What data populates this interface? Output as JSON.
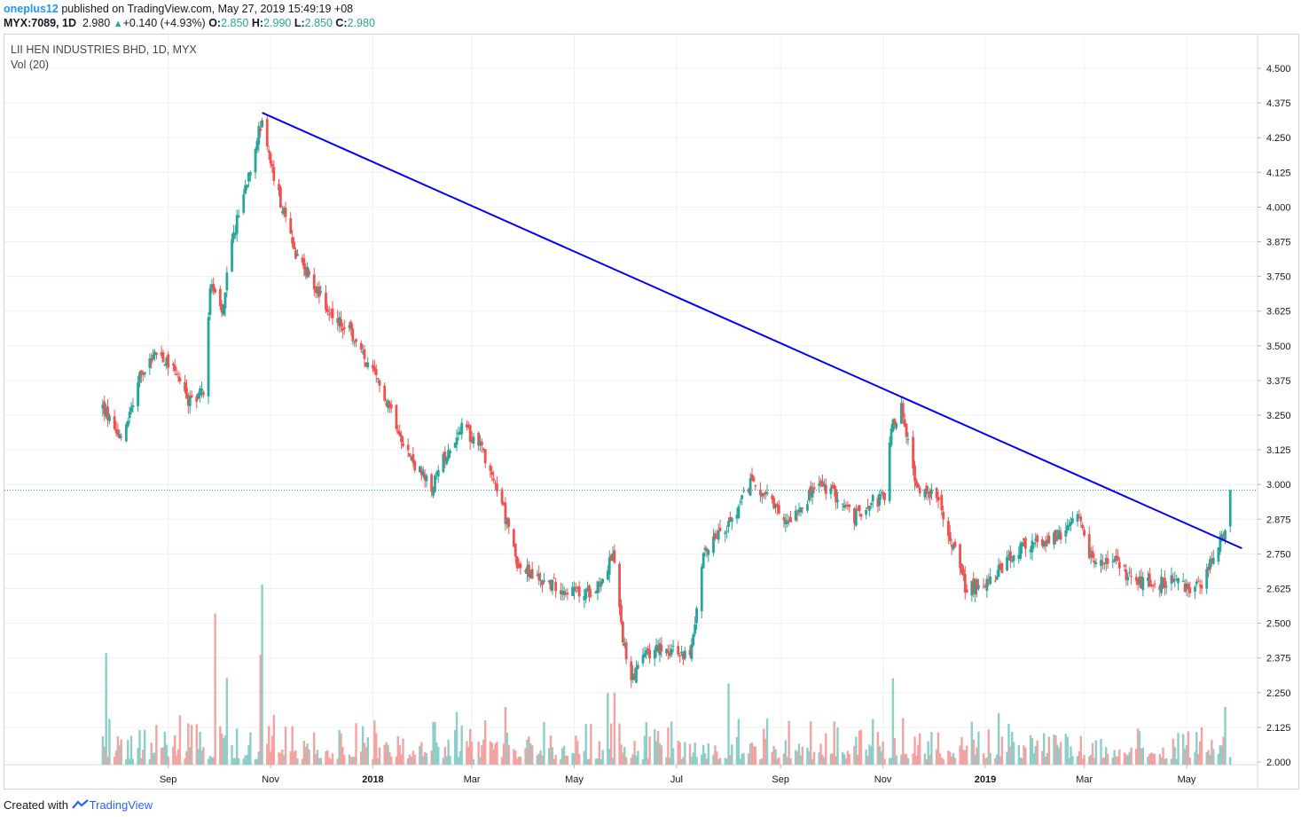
{
  "header": {
    "user": "oneplus12",
    "published": "published on TradingView.com, May 27, 2019 15:49:19 +08",
    "symbol": "MYX:7089, 1D",
    "last": "2.980",
    "change_arrow": "▲",
    "change": "+0.140 (+4.93%)",
    "o_label": "O:",
    "o": "2.850",
    "h_label": "H:",
    "h": "2.990",
    "l_label": "L:",
    "l": "2.850",
    "c_label": "C:",
    "c": "2.980"
  },
  "legend": {
    "title": "LII HEN INDUSTRIES BHD, 1D, MYX",
    "volume": "Vol (20)"
  },
  "footer": {
    "created": "Created with",
    "brand": "TradingView"
  },
  "colors": {
    "up": "#26a69a",
    "down": "#ef5350",
    "vol_up": "#8ccfc8",
    "vol_down": "#f3a3a1",
    "trendline": "#0000ff",
    "price_line": "#26a69a"
  },
  "chart_data": {
    "type": "candlestick",
    "title": "LII HEN INDUSTRIES BHD, 1D, MYX",
    "ylabel": "",
    "xlabel": "",
    "ylim": [
      2.0,
      4.5
    ],
    "y_ticks": [
      "4.500",
      "4.375",
      "4.250",
      "4.125",
      "4.000",
      "3.875",
      "3.750",
      "3.625",
      "3.500",
      "3.375",
      "3.250",
      "3.125",
      "3.000",
      "2.875",
      "2.750",
      "2.625",
      "2.500",
      "2.375",
      "2.250",
      "2.125",
      "2.000"
    ],
    "x_ticks": [
      "Sep",
      "Nov",
      "2018",
      "Mar",
      "May",
      "Jul",
      "Sep",
      "Nov",
      "2019",
      "Mar",
      "May"
    ],
    "x_tick_dates": [
      "2017-09-01",
      "2017-11-01",
      "2018-01-01",
      "2018-03-01",
      "2018-05-01",
      "2018-07-01",
      "2018-09-01",
      "2018-11-01",
      "2019-01-01",
      "2019-03-01",
      "2019-05-01"
    ],
    "date_range": [
      "2017-07-24",
      "2019-05-27"
    ],
    "last_price": 2.98,
    "trendline": {
      "start": {
        "date": "2017-10-27",
        "value": 4.34
      },
      "end": {
        "date": "2019-06-03",
        "value": 2.77
      }
    },
    "close_path": [
      {
        "date": "2017-07-24",
        "value": 3.28
      },
      {
        "date": "2017-08-04",
        "value": 3.16
      },
      {
        "date": "2017-08-15",
        "value": 3.38
      },
      {
        "date": "2017-08-25",
        "value": 3.48
      },
      {
        "date": "2017-09-05",
        "value": 3.42
      },
      {
        "date": "2017-09-13",
        "value": 3.3
      },
      {
        "date": "2017-09-22",
        "value": 3.34
      },
      {
        "date": "2017-09-26",
        "value": 3.72
      },
      {
        "date": "2017-10-03",
        "value": 3.62
      },
      {
        "date": "2017-10-10",
        "value": 3.9
      },
      {
        "date": "2017-10-20",
        "value": 4.15
      },
      {
        "date": "2017-10-27",
        "value": 4.32
      },
      {
        "date": "2017-11-03",
        "value": 4.1
      },
      {
        "date": "2017-11-15",
        "value": 3.85
      },
      {
        "date": "2017-11-27",
        "value": 3.72
      },
      {
        "date": "2017-12-08",
        "value": 3.6
      },
      {
        "date": "2017-12-18",
        "value": 3.55
      },
      {
        "date": "2017-12-27",
        "value": 3.45
      },
      {
        "date": "2018-01-10",
        "value": 3.3
      },
      {
        "date": "2018-01-23",
        "value": 3.1
      },
      {
        "date": "2018-02-05",
        "value": 2.98
      },
      {
        "date": "2018-02-14",
        "value": 3.12
      },
      {
        "date": "2018-02-23",
        "value": 3.2
      },
      {
        "date": "2018-03-06",
        "value": 3.15
      },
      {
        "date": "2018-03-18",
        "value": 2.95
      },
      {
        "date": "2018-03-29",
        "value": 2.7
      },
      {
        "date": "2018-04-09",
        "value": 2.66
      },
      {
        "date": "2018-04-23",
        "value": 2.63
      },
      {
        "date": "2018-05-07",
        "value": 2.6
      },
      {
        "date": "2018-05-18",
        "value": 2.66
      },
      {
        "date": "2018-05-24",
        "value": 2.75
      },
      {
        "date": "2018-05-29",
        "value": 2.48
      },
      {
        "date": "2018-06-04",
        "value": 2.3
      },
      {
        "date": "2018-06-12",
        "value": 2.38
      },
      {
        "date": "2018-06-22",
        "value": 2.42
      },
      {
        "date": "2018-07-03",
        "value": 2.38
      },
      {
        "date": "2018-07-10",
        "value": 2.4
      },
      {
        "date": "2018-07-16",
        "value": 2.72
      },
      {
        "date": "2018-07-23",
        "value": 2.82
      },
      {
        "date": "2018-08-03",
        "value": 2.86
      },
      {
        "date": "2018-08-15",
        "value": 3.02
      },
      {
        "date": "2018-08-24",
        "value": 2.95
      },
      {
        "date": "2018-09-03",
        "value": 2.86
      },
      {
        "date": "2018-09-12",
        "value": 2.92
      },
      {
        "date": "2018-09-24",
        "value": 3.0
      },
      {
        "date": "2018-10-04",
        "value": 2.96
      },
      {
        "date": "2018-10-15",
        "value": 2.88
      },
      {
        "date": "2018-10-24",
        "value": 2.94
      },
      {
        "date": "2018-11-02",
        "value": 2.95
      },
      {
        "date": "2018-11-06",
        "value": 3.2
      },
      {
        "date": "2018-11-12",
        "value": 3.28
      },
      {
        "date": "2018-11-20",
        "value": 3.0
      },
      {
        "date": "2018-12-03",
        "value": 2.96
      },
      {
        "date": "2018-12-12",
        "value": 2.8
      },
      {
        "date": "2018-12-20",
        "value": 2.63
      },
      {
        "date": "2019-01-02",
        "value": 2.64
      },
      {
        "date": "2019-01-14",
        "value": 2.72
      },
      {
        "date": "2019-01-25",
        "value": 2.78
      },
      {
        "date": "2019-02-08",
        "value": 2.8
      },
      {
        "date": "2019-02-18",
        "value": 2.82
      },
      {
        "date": "2019-02-25",
        "value": 2.88
      },
      {
        "date": "2019-03-06",
        "value": 2.72
      },
      {
        "date": "2019-03-18",
        "value": 2.72
      },
      {
        "date": "2019-03-29",
        "value": 2.66
      },
      {
        "date": "2019-04-10",
        "value": 2.64
      },
      {
        "date": "2019-04-22",
        "value": 2.65
      },
      {
        "date": "2019-05-02",
        "value": 2.62
      },
      {
        "date": "2019-05-10",
        "value": 2.64
      },
      {
        "date": "2019-05-17",
        "value": 2.76
      },
      {
        "date": "2019-05-22",
        "value": 2.8
      },
      {
        "date": "2019-05-24",
        "value": 2.84
      },
      {
        "date": "2019-05-27",
        "value": 2.98
      }
    ],
    "volume_spikes": [
      {
        "date": "2017-07-26",
        "rel": 0.62
      },
      {
        "date": "2017-09-29",
        "rel": 0.84
      },
      {
        "date": "2017-10-06",
        "rel": 0.48
      },
      {
        "date": "2017-10-27",
        "rel": 1.0
      },
      {
        "date": "2017-10-26",
        "rel": 0.61
      },
      {
        "date": "2018-03-21",
        "rel": 0.32
      },
      {
        "date": "2018-05-21",
        "rel": 0.4
      },
      {
        "date": "2018-05-25",
        "rel": 0.4
      },
      {
        "date": "2018-08-01",
        "rel": 0.45
      },
      {
        "date": "2018-11-07",
        "rel": 0.48
      },
      {
        "date": "2019-05-24",
        "rel": 0.32
      }
    ]
  }
}
